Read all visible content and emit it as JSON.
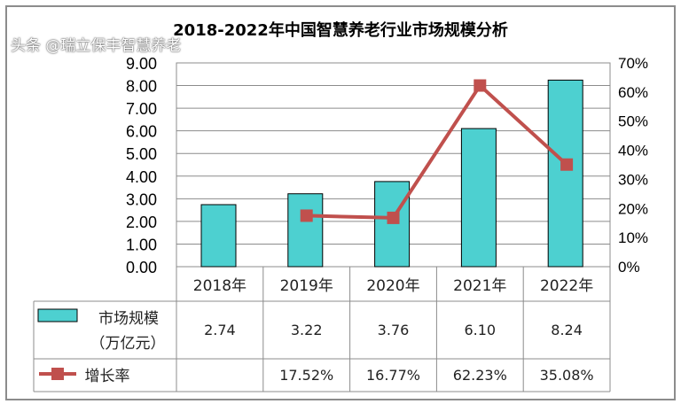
{
  "chart_data": {
    "type": "bar+line",
    "title": "2018-2022年中国智慧养老行业市场规模分析",
    "categories": [
      "2018年",
      "2019年",
      "2020年",
      "2021年",
      "2022年"
    ],
    "series": [
      {
        "name": "市场规模（万亿元）",
        "type": "bar",
        "axis": "left",
        "color": "#4dd0d0",
        "values": [
          2.74,
          3.22,
          3.76,
          6.1,
          8.24
        ],
        "labels": [
          "2.74",
          "3.22",
          "3.76",
          "6.10",
          "8.24"
        ]
      },
      {
        "name": "增长率",
        "type": "line",
        "axis": "right",
        "color": "#c0504d",
        "values": [
          null,
          17.52,
          16.77,
          62.23,
          35.08
        ],
        "labels": [
          "",
          "17.52%",
          "16.77%",
          "62.23%",
          "35.08%"
        ]
      }
    ],
    "yleft": {
      "range": [
        0,
        9
      ],
      "ticks": [
        "0.00",
        "1.00",
        "2.00",
        "3.00",
        "4.00",
        "5.00",
        "6.00",
        "7.00",
        "8.00",
        "9.00"
      ]
    },
    "yright": {
      "range": [
        0,
        70
      ],
      "ticks": [
        "0%",
        "10%",
        "20%",
        "30%",
        "40%",
        "50%",
        "60%",
        "70%"
      ]
    },
    "grid": true,
    "legend": "data-table"
  },
  "legend_bar_line1": "市场规模",
  "legend_bar_line2": "（万亿元）",
  "legend_line": "增长率",
  "watermark": "头条 @瑞立保丰智慧养老"
}
